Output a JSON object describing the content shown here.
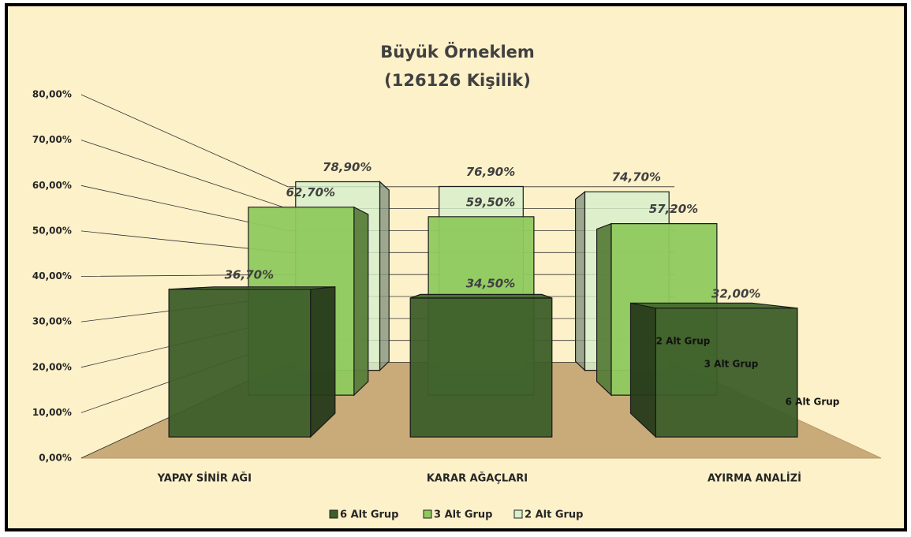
{
  "chart_data": {
    "type": "bar",
    "title": "Büyük Örneklem",
    "subtitle": "(126126 Kişilik)",
    "categories": [
      "YAPAY SİNİR AĞI",
      "KARAR AĞAÇLARI",
      "AYIRMA ANALİZİ"
    ],
    "series": [
      {
        "name": "6 Alt Grup",
        "color": "#3d5e2a",
        "values": [
          36.7,
          34.5,
          32.0
        ],
        "value_labels": [
          "36,70%",
          "34,50%",
          "32,00%"
        ]
      },
      {
        "name": "3 Alt Grup",
        "color": "#8fc95e",
        "values": [
          62.7,
          59.5,
          57.2
        ],
        "value_labels": [
          "62,70%",
          "59,50%",
          "57,20%"
        ]
      },
      {
        "name": "2 Alt Grup",
        "color": "#d6f0cc",
        "values": [
          78.9,
          76.9,
          74.7
        ],
        "value_labels": [
          "78,90%",
          "76,90%",
          "74,70%"
        ]
      }
    ],
    "ylim": [
      0,
      80
    ],
    "yticks": [
      {
        "value": 0,
        "label": "0,00%"
      },
      {
        "value": 10,
        "label": "10,00%"
      },
      {
        "value": 20,
        "label": "20,00%"
      },
      {
        "value": 30,
        "label": "30,00%"
      },
      {
        "value": 40,
        "label": "40,00%"
      },
      {
        "value": 50,
        "label": "50,00%"
      },
      {
        "value": 60,
        "label": "60,00%"
      },
      {
        "value": 70,
        "label": "70,00%"
      },
      {
        "value": 80,
        "label": "80,00%"
      }
    ],
    "grid": true,
    "legend": "bottom"
  }
}
